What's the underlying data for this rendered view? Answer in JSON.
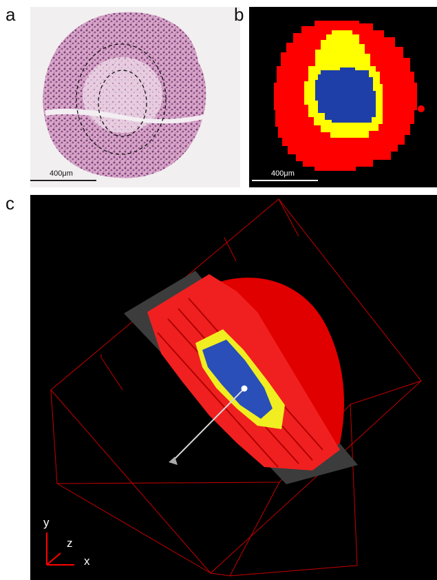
{
  "panels": {
    "a": {
      "label": "a",
      "scale_bar": "400μm"
    },
    "b": {
      "label": "b",
      "scale_bar": "400μm"
    },
    "c": {
      "label": "c",
      "axes": {
        "y": "y",
        "z": "z",
        "x": "x"
      }
    }
  },
  "colors": {
    "outer": "#ff0000",
    "middle": "#ffff00",
    "core": "#1e3fa8",
    "background": "#000000",
    "tissue_pink": "#c98ab4"
  }
}
